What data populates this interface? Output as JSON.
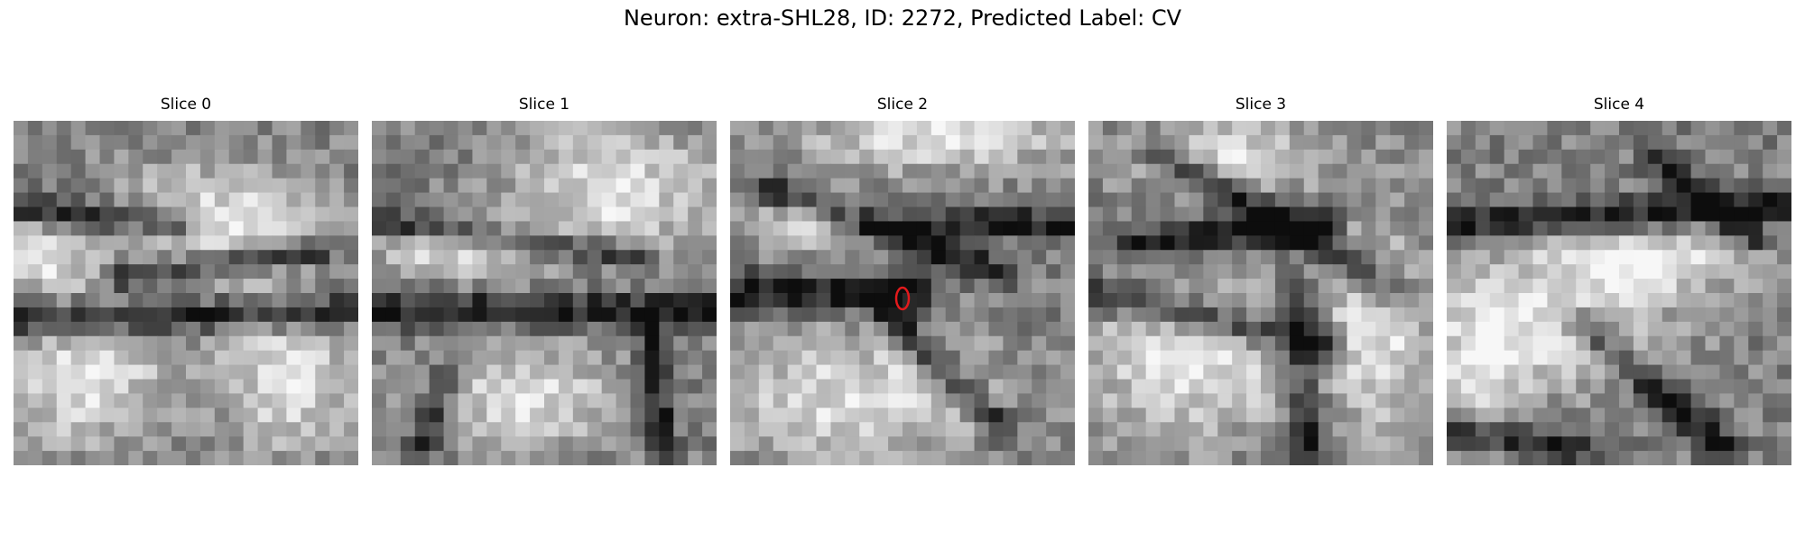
{
  "figure": {
    "suptitle": "Neuron: extra-SHL28, ID: 2272, Predicted Label: CV"
  },
  "panels": [
    {
      "title": "Slice 0"
    },
    {
      "title": "Slice 1"
    },
    {
      "title": "Slice 2",
      "has_marker": true,
      "marker_color": "#e31a1c"
    },
    {
      "title": "Slice 3"
    },
    {
      "title": "Slice 4"
    }
  ],
  "colors": {
    "background": "#ffffff",
    "colormap": "grayscale",
    "marker": "#e31a1c"
  }
}
